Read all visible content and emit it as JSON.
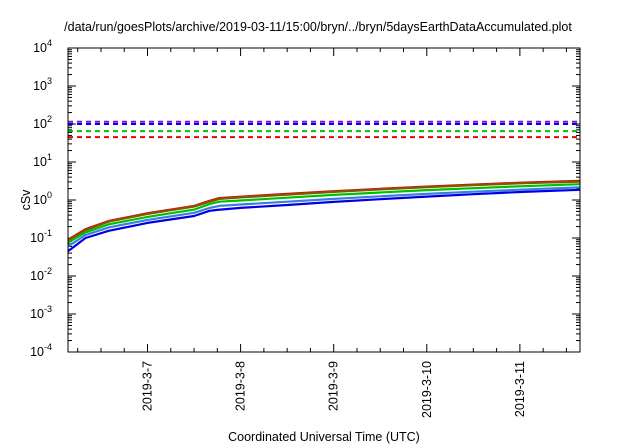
{
  "chart_data": {
    "type": "line",
    "title": "/data/run/goesPlots/archive/2019-03-11/15:00/bryn/../bryn/5daysEarthDataAccumulated.plot",
    "xlabel": "Coordinated Universal Time (UTC)",
    "ylabel": "cSv",
    "y_scale": "log",
    "ylim": [
      0.0001,
      10000
    ],
    "y_ticks": [
      {
        "base": "10",
        "exp": "-4"
      },
      {
        "base": "10",
        "exp": "-3"
      },
      {
        "base": "10",
        "exp": "-2"
      },
      {
        "base": "10",
        "exp": "-1"
      },
      {
        "base": "10",
        "exp": "0"
      },
      {
        "base": "10",
        "exp": "1"
      },
      {
        "base": "10",
        "exp": "2"
      },
      {
        "base": "10",
        "exp": "3"
      },
      {
        "base": "10",
        "exp": "4"
      }
    ],
    "xlim": [
      "2019-03-06 03:30",
      "2019-03-11 15:30"
    ],
    "x_ticks": [
      "2019-3-7",
      "2019-3-8",
      "2019-3-9",
      "2019-3-10",
      "2019-3-11"
    ],
    "grid": false,
    "series": [
      {
        "color": "#e8000a",
        "style": "solid",
        "points": [
          [
            "2019-03-06 03:30",
            0.09
          ],
          [
            "2019-03-06 08:00",
            0.17
          ],
          [
            "2019-03-06 14:00",
            0.28
          ],
          [
            "2019-03-07 00:00",
            0.45
          ],
          [
            "2019-03-07 12:00",
            0.7
          ],
          [
            "2019-03-07 16:00",
            0.95
          ],
          [
            "2019-03-07 18:30",
            1.12
          ],
          [
            "2019-03-08 00:00",
            1.22
          ],
          [
            "2019-03-08 12:00",
            1.45
          ],
          [
            "2019-03-09 00:00",
            1.7
          ],
          [
            "2019-03-09 12:00",
            1.97
          ],
          [
            "2019-03-10 00:00",
            2.25
          ],
          [
            "2019-03-10 12:00",
            2.55
          ],
          [
            "2019-03-11 00:00",
            2.85
          ],
          [
            "2019-03-11 15:30",
            3.2
          ]
        ]
      },
      {
        "color": "#7a5c00",
        "style": "solid",
        "points": [
          [
            "2019-03-06 03:30",
            0.085
          ],
          [
            "2019-03-06 08:00",
            0.16
          ],
          [
            "2019-03-06 14:00",
            0.27
          ],
          [
            "2019-03-07 00:00",
            0.43
          ],
          [
            "2019-03-07 12:00",
            0.67
          ],
          [
            "2019-03-07 16:00",
            0.9
          ],
          [
            "2019-03-07 18:30",
            1.07
          ],
          [
            "2019-03-08 00:00",
            1.17
          ],
          [
            "2019-03-08 12:00",
            1.39
          ],
          [
            "2019-03-09 00:00",
            1.63
          ],
          [
            "2019-03-09 12:00",
            1.9
          ],
          [
            "2019-03-10 00:00",
            2.17
          ],
          [
            "2019-03-10 12:00",
            2.45
          ],
          [
            "2019-03-11 00:00",
            2.75
          ],
          [
            "2019-03-11 15:30",
            3.05
          ]
        ]
      },
      {
        "color": "#00c000",
        "style": "solid",
        "points": [
          [
            "2019-03-06 03:30",
            0.075
          ],
          [
            "2019-03-06 08:00",
            0.14
          ],
          [
            "2019-03-06 14:00",
            0.23
          ],
          [
            "2019-03-07 00:00",
            0.36
          ],
          [
            "2019-03-07 12:00",
            0.56
          ],
          [
            "2019-03-07 16:00",
            0.78
          ],
          [
            "2019-03-07 18:30",
            0.9
          ],
          [
            "2019-03-08 00:00",
            0.97
          ],
          [
            "2019-03-08 12:00",
            1.15
          ],
          [
            "2019-03-09 00:00",
            1.36
          ],
          [
            "2019-03-09 12:00",
            1.58
          ],
          [
            "2019-03-10 00:00",
            1.82
          ],
          [
            "2019-03-10 12:00",
            2.05
          ],
          [
            "2019-03-11 00:00",
            2.3
          ],
          [
            "2019-03-11 15:30",
            2.6
          ]
        ]
      },
      {
        "color": "#3a7fe0",
        "style": "solid",
        "points": [
          [
            "2019-03-06 03:30",
            0.06
          ],
          [
            "2019-03-06 08:00",
            0.12
          ],
          [
            "2019-03-06 14:00",
            0.19
          ],
          [
            "2019-03-07 00:00",
            0.3
          ],
          [
            "2019-03-07 12:00",
            0.46
          ],
          [
            "2019-03-07 16:00",
            0.62
          ],
          [
            "2019-03-07 18:30",
            0.7
          ],
          [
            "2019-03-08 00:00",
            0.76
          ],
          [
            "2019-03-08 12:00",
            0.9
          ],
          [
            "2019-03-09 00:00",
            1.07
          ],
          [
            "2019-03-09 12:00",
            1.25
          ],
          [
            "2019-03-10 00:00",
            1.45
          ],
          [
            "2019-03-10 12:00",
            1.65
          ],
          [
            "2019-03-11 00:00",
            1.87
          ],
          [
            "2019-03-11 15:30",
            2.15
          ]
        ]
      },
      {
        "color": "#0000e6",
        "style": "solid",
        "points": [
          [
            "2019-03-06 03:30",
            0.045
          ],
          [
            "2019-03-06 08:00",
            0.1
          ],
          [
            "2019-03-06 14:00",
            0.155
          ],
          [
            "2019-03-07 00:00",
            0.25
          ],
          [
            "2019-03-07 12:00",
            0.38
          ],
          [
            "2019-03-07 16:00",
            0.52
          ],
          [
            "2019-03-07 18:00",
            0.55
          ],
          [
            "2019-03-08 00:00",
            0.62
          ],
          [
            "2019-03-08 12:00",
            0.74
          ],
          [
            "2019-03-09 00:00",
            0.89
          ],
          [
            "2019-03-09 12:00",
            1.05
          ],
          [
            "2019-03-10 00:00",
            1.23
          ],
          [
            "2019-03-10 12:00",
            1.42
          ],
          [
            "2019-03-11 00:00",
            1.62
          ],
          [
            "2019-03-11 15:30",
            1.85
          ]
        ]
      },
      {
        "color": "#9400d3",
        "style": "dashed",
        "y": 115
      },
      {
        "color": "#0000e6",
        "style": "dashed",
        "y": 100
      },
      {
        "color": "#00c000",
        "style": "dashed",
        "y": 65
      },
      {
        "color": "#e8000a",
        "style": "dashed",
        "y": 45
      }
    ]
  }
}
